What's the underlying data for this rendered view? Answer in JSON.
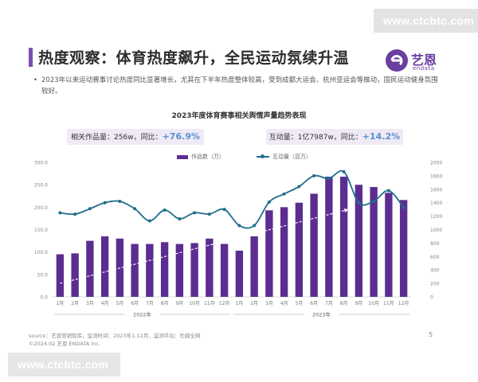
{
  "watermark_top": "www.ctcbtc.com",
  "watermark_bottom": "www.ctcbtc.com",
  "title": "热度观察：体育热度飙升，全民运动氛续升温",
  "logo": {
    "name": "艺恩",
    "sub": "endata"
  },
  "bullet": "2023年以来运动赛事讨论热度同比显著增长，尤其在下半年热度整体较高，受到成都大运会、杭州亚运会等推动，国民运动健身氛围较好。",
  "stats": [
    {
      "label": "相关作品量：256w，同比：",
      "change": "+76.9%"
    },
    {
      "label": "互动量：1亿7987w，同比：",
      "change": "+14.2%"
    }
  ],
  "footer": {
    "source": "source：艺恩营销智库，监测时间：2023年1-12月，监测平台：社媒全网",
    "copyright": "©2024.02 艺恩 ENDATA Inc."
  },
  "page_number": "5",
  "colors": {
    "bar": "#5c2d91",
    "line": "#1f6e8c",
    "trend": "#ffffff",
    "accent": "#5b8fd0"
  },
  "chart_data": {
    "type": "bar",
    "title": "2023年度体育赛事相关舆情声量趋势表现",
    "categories": [
      "1月",
      "2月",
      "3月",
      "4月",
      "5月",
      "6月",
      "7月",
      "8月",
      "9月",
      "10月",
      "11月",
      "12月",
      "1月",
      "2月",
      "3月",
      "4月",
      "5月",
      "6月",
      "7月",
      "8月",
      "9月",
      "10月",
      "11月",
      "12月"
    ],
    "groups": [
      {
        "label": "2022年",
        "from": 0,
        "to": 11
      },
      {
        "label": "2023年",
        "from": 12,
        "to": 23
      }
    ],
    "series": [
      {
        "name": "作品数（万）",
        "type": "bar",
        "axis": "left",
        "values": [
          95,
          97,
          125,
          135,
          130,
          118,
          118,
          122,
          118,
          120,
          130,
          118,
          103,
          135,
          193,
          200,
          210,
          230,
          268,
          268,
          250,
          245,
          232,
          216
        ]
      },
      {
        "name": "互动量（百万）",
        "type": "line",
        "axis": "right",
        "values": [
          1250,
          1230,
          1310,
          1400,
          1420,
          1310,
          1130,
          1290,
          1160,
          1250,
          1230,
          1300,
          1060,
          1060,
          1410,
          1530,
          1640,
          1800,
          1760,
          1860,
          1400,
          1420,
          1580,
          1330
        ]
      }
    ],
    "y_left": {
      "lim": [
        0,
        300
      ],
      "ticks": [
        "0.0",
        "50.0",
        "100.0",
        "150.0",
        "200.0",
        "250.0",
        "300.0"
      ]
    },
    "y_right": {
      "lim": [
        0,
        2000
      ],
      "ticks": [
        "0",
        "200",
        "400",
        "600",
        "800",
        "1000",
        "1200",
        "1400",
        "1600",
        "1800",
        "2000"
      ]
    },
    "grid": false,
    "legend": "top-center",
    "trend_arrow": true
  }
}
